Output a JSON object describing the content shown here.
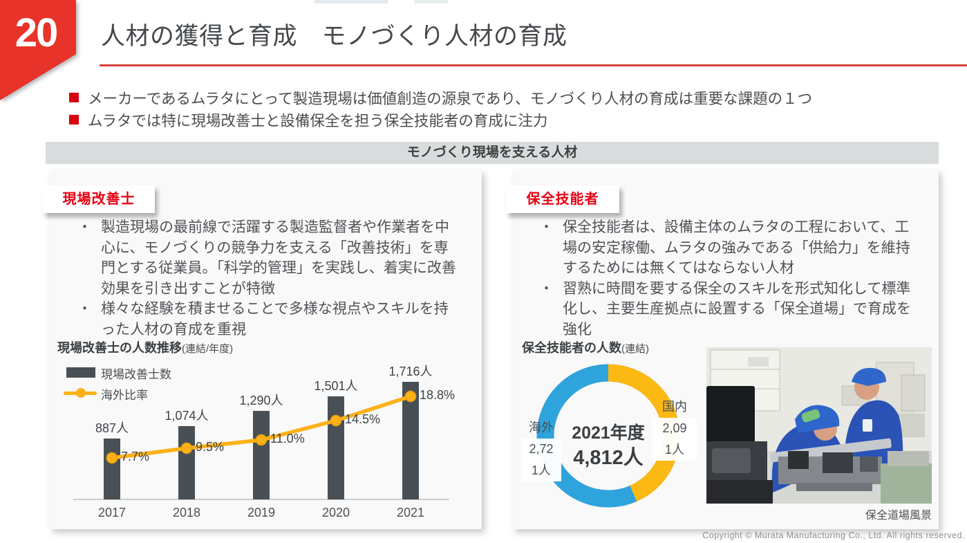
{
  "slide": {
    "number": "20",
    "title": "人材の獲得と育成　モノづくり人材の育成",
    "bullets": [
      "メーカーであるムラタにとって製造現場は価値創造の源泉であり、モノづくり人材の育成は重要な課題の１つ",
      "ムラタでは特に現場改善士と設備保全を担う保全技能者の育成に注力"
    ],
    "section_header": "モノづくり現場を支える人材",
    "copyright": "Copyright © Murata Manufacturing Co., Ltd. All rights reserved."
  },
  "left_panel": {
    "label": "現場改善士",
    "bullets": [
      "製造現場の最前線で活躍する製造監督者や作業者を中心に、モノづくりの競争力を支える「改善技術」を専門とする従業員。「科学的管理」を実践し、着実に改善効果を引き出すことが特徴",
      "様々な経験を積ませることで多様な視点やスキルを持った人材の育成を重視"
    ]
  },
  "right_panel": {
    "label": "保全技能者",
    "bullets": [
      "保全技能者は、設備主体のムラタの工程において、工場の安定稼働、ムラタの強みである「供給力」を維持するためには無くてはならない人材",
      "習熟に時間を要する保全のスキルを形式知化して標準化し、主要生産拠点に設置する「保全道場」で育成を強化"
    ],
    "photo_caption": "保全道場風景"
  },
  "colors": {
    "accent_red": "#e60012",
    "badge_red": "#e8332a",
    "bar_gray": "#485056",
    "line_amber": "#fbb117",
    "donut_domestic_yellow": "#fdb913",
    "donut_overseas_blue": "#2fa3dc",
    "band_gray": "#d9dcdc"
  },
  "chart_data": [
    {
      "type": "bar",
      "subtype": "bar-with-line-overlay",
      "title": "現場改善士の人数推移",
      "title_suffix": "(連結/年度)",
      "categories": [
        "2017",
        "2018",
        "2019",
        "2020",
        "2021"
      ],
      "series": [
        {
          "name": "現場改善士数",
          "type": "bar",
          "values": [
            887,
            1074,
            1290,
            1501,
            1716
          ],
          "labels": [
            "887人",
            "1,074人",
            "1,290人",
            "1,501人",
            "1,716人"
          ],
          "color": "#485056"
        },
        {
          "name": "海外比率",
          "type": "line",
          "values": [
            7.7,
            9.5,
            11.0,
            14.5,
            18.8
          ],
          "labels": [
            "7.7%",
            "9.5%",
            "11.0%",
            "14.5%",
            "18.8%"
          ],
          "color": "#fbb117"
        }
      ],
      "xlabel": "",
      "ylabel": "",
      "grid": false,
      "legend_position": "top-left"
    },
    {
      "type": "pie",
      "subtype": "donut",
      "title": "保全技能者の人数",
      "title_suffix": "(連結)",
      "center_label_line1": "2021年度",
      "center_label_line2": "4,812人",
      "total": 4812,
      "slices": [
        {
          "name": "国内",
          "value": 2091,
          "label_lines": [
            "国内",
            "2,09",
            "1人"
          ],
          "color": "#fdb913"
        },
        {
          "name": "海外",
          "value": 2721,
          "label_lines": [
            "海外",
            "2,72",
            "1人"
          ],
          "color": "#2fa3dc"
        }
      ],
      "start_angle": "top",
      "direction": "clockwise"
    }
  ]
}
